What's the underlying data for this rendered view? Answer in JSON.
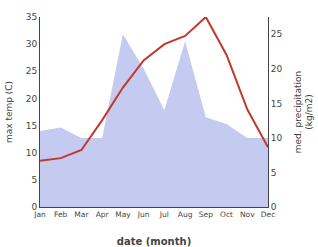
{
  "chart_data": {
    "type": "line",
    "xlabel": "date (month)",
    "ylabel": "max temp (C)",
    "y2label": "med. precipitation\n(kg/m2)",
    "categories": [
      "Jan",
      "Feb",
      "Mar",
      "Apr",
      "May",
      "Jun",
      "Jul",
      "Aug",
      "Sep",
      "Oct",
      "Nov",
      "Dec"
    ],
    "series": [
      {
        "type": "line",
        "color": "#c0392b",
        "values": [
          8.5,
          9.0,
          10.5,
          16.0,
          22.0,
          27.0,
          30.0,
          31.5,
          35.0,
          28.0,
          18.0,
          11.0
        ]
      },
      {
        "type": "area",
        "axis": "y2",
        "color": "#c5caf0",
        "values": [
          11.0,
          11.5,
          10.0,
          10.0,
          25.0,
          20.0,
          14.0,
          24.0,
          13.0,
          12.0,
          10.0,
          10.0
        ]
      }
    ],
    "ylim": [
      0,
      35
    ],
    "yticks": [
      0,
      5,
      10,
      15,
      20,
      25,
      30,
      35
    ],
    "y2lim": [
      0,
      27.5
    ],
    "y2ticks": [
      0,
      5,
      10,
      15,
      20,
      25
    ],
    "grid": false
  }
}
